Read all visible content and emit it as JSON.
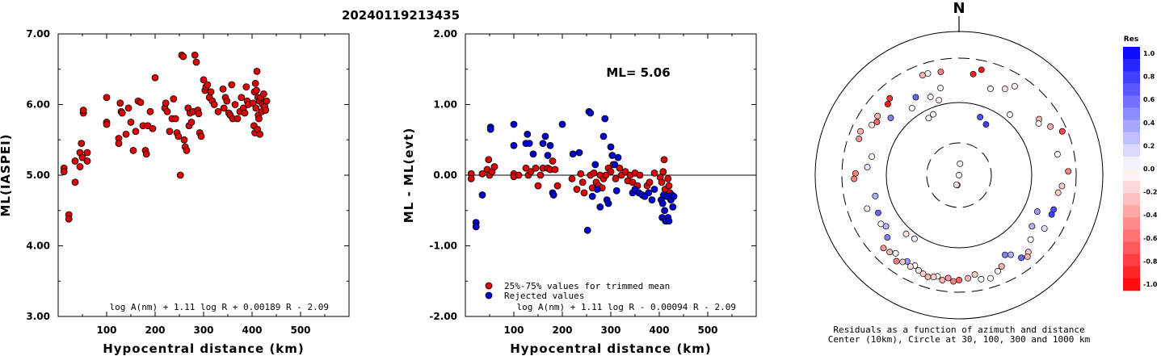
{
  "title": "20240119213435",
  "colors": {
    "accepted": "#dd0000",
    "rejected": "#0000cc"
  },
  "chart_data": [
    {
      "type": "scatter",
      "xlabel": "Hypocentral distance (km)",
      "ylabel": "ML(IASPEI)",
      "xlim": [
        0,
        600
      ],
      "ylim": [
        3.0,
        7.0
      ],
      "xticks": [
        "100",
        "200",
        "300",
        "400",
        "500"
      ],
      "yticks": [
        "3.00",
        "4.00",
        "5.00",
        "6.00",
        "7.00"
      ],
      "equation": "log A(nm) + 1.11 log R + 0.00189 R - 2.09",
      "points": [
        [
          12,
          5.1
        ],
        [
          12,
          5.05
        ],
        [
          22,
          4.44
        ],
        [
          22,
          4.38
        ],
        [
          35,
          4.9
        ],
        [
          35,
          5.2
        ],
        [
          45,
          5.12
        ],
        [
          45,
          5.32
        ],
        [
          48,
          5.45
        ],
        [
          50,
          5.25
        ],
        [
          52,
          5.88
        ],
        [
          52,
          5.92
        ],
        [
          60,
          5.32
        ],
        [
          60,
          5.2
        ],
        [
          100,
          6.1
        ],
        [
          100,
          5.75
        ],
        [
          100,
          5.72
        ],
        [
          125,
          5.52
        ],
        [
          125,
          5.45
        ],
        [
          128,
          6.02
        ],
        [
          130,
          5.9
        ],
        [
          132,
          5.88
        ],
        [
          140,
          5.58
        ],
        [
          145,
          5.95
        ],
        [
          150,
          5.75
        ],
        [
          155,
          5.35
        ],
        [
          160,
          5.62
        ],
        [
          165,
          6.05
        ],
        [
          170,
          6.03
        ],
        [
          175,
          5.7
        ],
        [
          180,
          5.35
        ],
        [
          182,
          5.3
        ],
        [
          185,
          5.7
        ],
        [
          190,
          5.9
        ],
        [
          195,
          5.66
        ],
        [
          200,
          6.38
        ],
        [
          220,
          5.95
        ],
        [
          222,
          6.02
        ],
        [
          225,
          5.9
        ],
        [
          230,
          5.62
        ],
        [
          235,
          5.8
        ],
        [
          238,
          6.08
        ],
        [
          242,
          5.8
        ],
        [
          245,
          5.6
        ],
        [
          248,
          5.55
        ],
        [
          252,
          5.0
        ],
        [
          255,
          6.7
        ],
        [
          258,
          6.68
        ],
        [
          260,
          5.5
        ],
        [
          262,
          5.4
        ],
        [
          265,
          5.35
        ],
        [
          268,
          5.95
        ],
        [
          270,
          5.7
        ],
        [
          272,
          5.88
        ],
        [
          275,
          5.75
        ],
        [
          278,
          5.9
        ],
        [
          282,
          6.7
        ],
        [
          285,
          6.6
        ],
        [
          288,
          5.92
        ],
        [
          290,
          5.87
        ],
        [
          292,
          5.6
        ],
        [
          295,
          5.55
        ],
        [
          300,
          6.35
        ],
        [
          303,
          6.2
        ],
        [
          305,
          6.25
        ],
        [
          308,
          6.28
        ],
        [
          312,
          6.1
        ],
        [
          315,
          6.18
        ],
        [
          318,
          6.05
        ],
        [
          322,
          6.0
        ],
        [
          330,
          5.9
        ],
        [
          340,
          6.22
        ],
        [
          342,
          5.95
        ],
        [
          345,
          6.1
        ],
        [
          348,
          6.05
        ],
        [
          352,
          5.88
        ],
        [
          355,
          5.85
        ],
        [
          358,
          6.28
        ],
        [
          360,
          5.8
        ],
        [
          365,
          6.0
        ],
        [
          370,
          5.8
        ],
        [
          375,
          5.9
        ],
        [
          378,
          6.1
        ],
        [
          382,
          5.95
        ],
        [
          385,
          5.88
        ],
        [
          388,
          6.25
        ],
        [
          390,
          6.05
        ],
        [
          392,
          6.0
        ],
        [
          402,
          6.02
        ],
        [
          404,
          5.7
        ],
        [
          405,
          6.18
        ],
        [
          406,
          5.6
        ],
        [
          407,
          6.3
        ],
        [
          408,
          5.95
        ],
        [
          409,
          6.2
        ],
        [
          410,
          6.47
        ],
        [
          411,
          5.65
        ],
        [
          412,
          6.1
        ],
        [
          413,
          5.85
        ],
        [
          414,
          5.8
        ],
        [
          415,
          6.05
        ],
        [
          416,
          5.58
        ],
        [
          418,
          6.1
        ],
        [
          420,
          5.9
        ],
        [
          422,
          6.0
        ],
        [
          424,
          6.15
        ],
        [
          426,
          5.97
        ],
        [
          428,
          5.92
        ],
        [
          430,
          6.05
        ]
      ]
    },
    {
      "type": "scatter",
      "xlabel": "Hypocentral distance (km)",
      "ylabel": "ML - ML(evt)",
      "xlim": [
        0,
        600
      ],
      "ylim": [
        -2.0,
        2.0
      ],
      "xticks": [
        "100",
        "200",
        "300",
        "400",
        "500"
      ],
      "yticks": [
        "-2.00",
        "-1.00",
        "0.00",
        "1.00",
        "2.00"
      ],
      "reference_line": 0.0,
      "ml_label": "ML= 5.06",
      "legend": {
        "accepted": "25%-75% values for trimmed mean",
        "rejected": "Rejected values"
      },
      "equation": "log A(nm) + 1.11 log R - 0.00094 R - 2.09",
      "accepted": [
        [
          12,
          0.02
        ],
        [
          12,
          -0.05
        ],
        [
          35,
          0.02
        ],
        [
          45,
          0.08
        ],
        [
          48,
          0.22
        ],
        [
          50,
          0.0
        ],
        [
          55,
          0.05
        ],
        [
          60,
          0.12
        ],
        [
          100,
          0.02
        ],
        [
          100,
          -0.02
        ],
        [
          110,
          0.0
        ],
        [
          125,
          0.1
        ],
        [
          130,
          0.0
        ],
        [
          135,
          0.05
        ],
        [
          145,
          0.1
        ],
        [
          150,
          -0.15
        ],
        [
          155,
          0.0
        ],
        [
          160,
          0.1
        ],
        [
          170,
          0.1
        ],
        [
          175,
          0.08
        ],
        [
          180,
          0.2
        ],
        [
          185,
          0.08
        ],
        [
          190,
          -0.15
        ],
        [
          220,
          -0.05
        ],
        [
          230,
          -0.2
        ],
        [
          238,
          0.02
        ],
        [
          242,
          -0.1
        ],
        [
          245,
          -0.25
        ],
        [
          258,
          0.0
        ],
        [
          262,
          -0.18
        ],
        [
          265,
          0.03
        ],
        [
          270,
          -0.1
        ],
        [
          275,
          -0.15
        ],
        [
          278,
          0.0
        ],
        [
          282,
          -0.18
        ],
        [
          285,
          -0.05
        ],
        [
          290,
          0.0
        ],
        [
          295,
          0.1
        ],
        [
          300,
          0.05
        ],
        [
          305,
          0.15
        ],
        [
          310,
          -0.05
        ],
        [
          318,
          0.1
        ],
        [
          322,
          0.0
        ],
        [
          330,
          0.05
        ],
        [
          335,
          -0.08
        ],
        [
          340,
          0.0
        ],
        [
          345,
          -0.1
        ],
        [
          350,
          0.03
        ],
        [
          355,
          -0.15
        ],
        [
          360,
          0.0
        ],
        [
          375,
          -0.15
        ],
        [
          380,
          -0.1
        ],
        [
          390,
          0.03
        ],
        [
          402,
          -0.03
        ],
        [
          405,
          -0.1
        ],
        [
          408,
          0.05
        ],
        [
          410,
          0.22
        ],
        [
          412,
          -0.2
        ],
        [
          415,
          -0.3
        ],
        [
          418,
          -0.05
        ],
        [
          420,
          -0.15
        ],
        [
          422,
          -0.25
        ]
      ],
      "rejected": [
        [
          22,
          -0.67
        ],
        [
          22,
          -0.73
        ],
        [
          35,
          -0.28
        ],
        [
          52,
          0.68
        ],
        [
          52,
          0.65
        ],
        [
          100,
          0.42
        ],
        [
          100,
          0.72
        ],
        [
          125,
          0.45
        ],
        [
          128,
          0.58
        ],
        [
          132,
          0.45
        ],
        [
          140,
          0.3
        ],
        [
          160,
          0.45
        ],
        [
          165,
          0.55
        ],
        [
          170,
          0.28
        ],
        [
          175,
          0.42
        ],
        [
          180,
          -0.25
        ],
        [
          182,
          -0.28
        ],
        [
          200,
          0.72
        ],
        [
          222,
          0.3
        ],
        [
          235,
          0.32
        ],
        [
          252,
          -0.78
        ],
        [
          255,
          0.9
        ],
        [
          258,
          0.88
        ],
        [
          262,
          -0.3
        ],
        [
          268,
          0.15
        ],
        [
          272,
          -0.2
        ],
        [
          278,
          -0.45
        ],
        [
          285,
          0.55
        ],
        [
          288,
          0.8
        ],
        [
          292,
          -0.35
        ],
        [
          295,
          -0.4
        ],
        [
          300,
          0.4
        ],
        [
          303,
          0.28
        ],
        [
          308,
          0.15
        ],
        [
          312,
          -0.22
        ],
        [
          315,
          0.25
        ],
        [
          345,
          -0.25
        ],
        [
          350,
          -0.2
        ],
        [
          358,
          -0.25
        ],
        [
          365,
          -0.28
        ],
        [
          370,
          -0.3
        ],
        [
          378,
          -0.25
        ],
        [
          385,
          -0.35
        ],
        [
          390,
          -0.2
        ],
        [
          404,
          -0.35
        ],
        [
          406,
          -0.6
        ],
        [
          407,
          -0.4
        ],
        [
          409,
          -0.28
        ],
        [
          411,
          -0.5
        ],
        [
          413,
          -0.65
        ],
        [
          416,
          -0.3
        ],
        [
          418,
          -0.6
        ],
        [
          420,
          -0.65
        ],
        [
          424,
          -0.35
        ],
        [
          426,
          -0.28
        ],
        [
          428,
          -0.45
        ],
        [
          430,
          -0.3
        ]
      ]
    },
    {
      "type": "scatter",
      "north_label": "N",
      "caption_line1": "Residuals as a function of azimuth and distance",
      "caption_line2": "Center (10km), Circle at 30, 100, 300 and 1000 km",
      "colorbar": {
        "title": "Res",
        "ticks": [
          "1.0",
          "0.8",
          "0.6",
          "0.4",
          "0.2",
          "0.0",
          "-0.2",
          "-0.4",
          "-0.6",
          "-0.8",
          "-1.0"
        ]
      },
      "circles": [
        {
          "distance_km": 30,
          "style": "dashed"
        },
        {
          "distance_km": 100,
          "style": "solid"
        },
        {
          "distance_km": 300,
          "style": "dashed"
        },
        {
          "distance_km": 1000,
          "style": "solid"
        }
      ],
      "points_az_res": [
        [
          2,
          0.0,
          -0.05
        ],
        [
          5,
          0.08,
          0.02
        ],
        [
          190,
          0.07,
          -0.15
        ],
        [
          195,
          0.07,
          -0.1
        ],
        [
          20,
          0.43,
          0.7
        ],
        [
          28,
          0.4,
          0.75
        ],
        [
          215,
          0.54,
          0.05
        ],
        [
          222,
          0.55,
          -0.1
        ],
        [
          325,
          0.57,
          0.01
        ],
        [
          332,
          0.45,
          -0.05
        ],
        [
          337,
          0.46,
          0.03
        ],
        [
          340,
          0.58,
          -0.05
        ],
        [
          345,
          0.54,
          -0.05
        ],
        [
          348,
          0.62,
          0.05
        ],
        [
          8,
          0.71,
          -0.9
        ],
        [
          12,
          0.75,
          -0.9
        ],
        [
          20,
          0.64,
          0.0
        ],
        [
          28,
          0.68,
          -0.1
        ],
        [
          32,
          0.73,
          -0.05
        ],
        [
          40,
          0.55,
          0.01
        ],
        [
          55,
          0.68,
          -0.3
        ],
        [
          57,
          0.66,
          0.0
        ],
        [
          62,
          0.72,
          -0.3
        ],
        [
          67,
          0.78,
          -0.7
        ],
        [
          78,
          0.7,
          0.0
        ],
        [
          88,
          0.76,
          -0.5
        ],
        [
          96,
          0.72,
          -0.2
        ],
        [
          100,
          0.7,
          -0.2
        ],
        [
          110,
          0.7,
          0.7
        ],
        [
          113,
          0.7,
          0.75
        ],
        [
          115,
          0.6,
          0.4
        ],
        [
          122,
          0.7,
          0.1
        ],
        [
          125,
          0.62,
          0.3
        ],
        [
          132,
          0.67,
          0.0
        ],
        [
          138,
          0.72,
          -0.2
        ],
        [
          140,
          0.74,
          -0.3
        ],
        [
          143,
          0.72,
          0.6
        ],
        [
          147,
          0.66,
          0.3
        ],
        [
          150,
          0.64,
          0.5
        ],
        [
          155,
          0.7,
          -0.3
        ],
        [
          158,
          0.72,
          0.0
        ],
        [
          163,
          0.75,
          0.0
        ],
        [
          168,
          0.74,
          0.0
        ],
        [
          171,
          0.7,
          -0.2
        ],
        [
          175,
          0.72,
          -0.3
        ],
        [
          180,
          0.73,
          -0.6
        ],
        [
          183,
          0.74,
          -0.5
        ],
        [
          186,
          0.72,
          -0.4
        ],
        [
          189,
          0.74,
          -0.3
        ],
        [
          192,
          0.72,
          0.0
        ],
        [
          194,
          0.73,
          -0.2
        ],
        [
          197,
          0.74,
          -0.3
        ],
        [
          200,
          0.73,
          -0.2
        ],
        [
          203,
          0.72,
          -0.1
        ],
        [
          206,
          0.7,
          0.0
        ],
        [
          208,
          0.72,
          -0.1
        ],
        [
          211,
          0.7,
          0.4
        ],
        [
          213,
          0.72,
          -0.2
        ],
        [
          216,
          0.74,
          -0.5
        ],
        [
          219,
          0.7,
          0.0
        ],
        [
          222,
          0.72,
          -0.3
        ],
        [
          226,
          0.73,
          -0.4
        ],
        [
          229,
          0.66,
          0.5
        ],
        [
          235,
          0.62,
          0.3
        ],
        [
          238,
          0.64,
          0.0
        ],
        [
          245,
          0.62,
          0.6
        ],
        [
          250,
          0.68,
          -0.05
        ],
        [
          256,
          0.6,
          0.3
        ],
        [
          268,
          0.73,
          -0.5
        ],
        [
          271,
          0.72,
          -0.5
        ],
        [
          275,
          0.64,
          0.1
        ],
        [
          282,
          0.62,
          0.0
        ],
        [
          290,
          0.74,
          -0.4
        ],
        [
          294,
          0.75,
          -0.3
        ],
        [
          300,
          0.7,
          -0.1
        ],
        [
          303,
          0.68,
          -0.6
        ],
        [
          306,
          0.7,
          -0.3
        ],
        [
          310,
          0.62,
          0.5
        ],
        [
          315,
          0.7,
          -0.9
        ],
        [
          318,
          0.72,
          -0.8
        ],
        [
          331,
          0.62,
          0.6
        ],
        [
          340,
          0.74,
          -0.3
        ],
        [
          343,
          0.74,
          0.0
        ],
        [
          350,
          0.73,
          -0.5
        ]
      ]
    }
  ]
}
